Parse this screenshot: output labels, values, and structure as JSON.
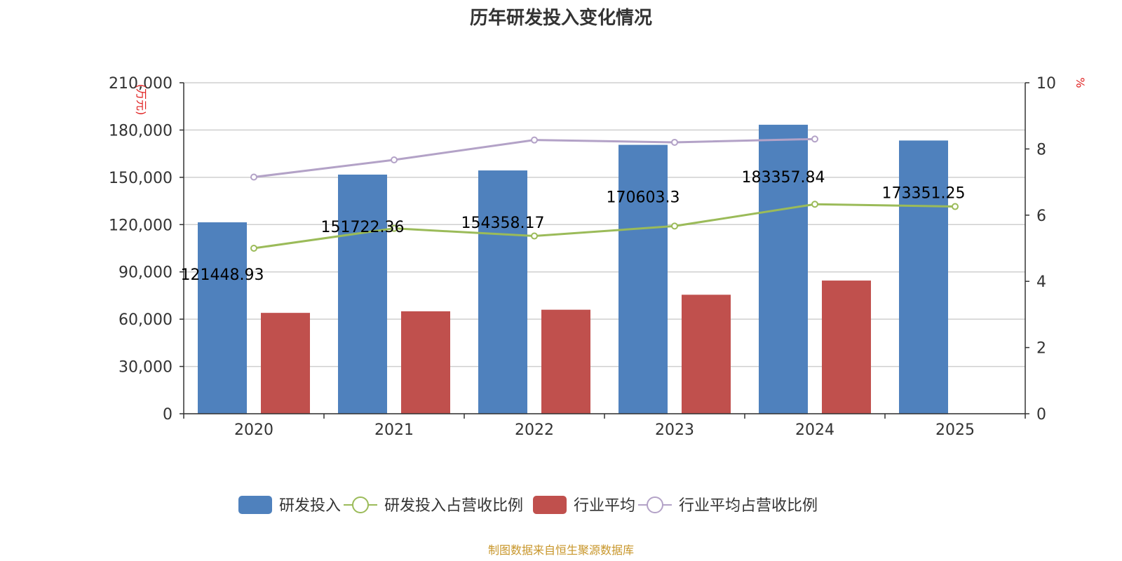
{
  "chart_data": {
    "type": "bar",
    "title": "历年研发投入变化情况",
    "categories": [
      "2020",
      "2021",
      "2022",
      "2023",
      "2024",
      "2025"
    ],
    "y_left": {
      "unit": "(万元)",
      "range": [
        0,
        210000
      ],
      "ticks": [
        0,
        30000,
        60000,
        90000,
        120000,
        150000,
        180000,
        210000
      ],
      "tick_labels": [
        "0",
        "30,000",
        "60,000",
        "90,000",
        "120,000",
        "150,000",
        "180,000",
        "210,000"
      ]
    },
    "y_right": {
      "unit": "%",
      "range": [
        0,
        10
      ],
      "ticks": [
        0,
        2,
        4,
        6,
        8,
        10
      ],
      "tick_labels": [
        "0",
        "2",
        "4",
        "6",
        "8",
        "10"
      ]
    },
    "grid": true,
    "legend_position": "bottom",
    "series": [
      {
        "name": "研发投入",
        "kind": "bar",
        "axis": "left",
        "color": "#4f81bd",
        "values": [
          121448.93,
          151722.36,
          154358.17,
          170603.3,
          183357.84,
          173351.25
        ],
        "labels": [
          "121448.93",
          "151722.36",
          "154358.17",
          "170603.3",
          "183357.84",
          "173351.25"
        ]
      },
      {
        "name": "研发投入占营收比例",
        "kind": "line",
        "axis": "right",
        "color": "#9bbb59",
        "values": [
          5.0,
          5.6,
          5.37,
          5.67,
          6.33,
          6.26
        ]
      },
      {
        "name": "行业平均",
        "kind": "bar",
        "axis": "left",
        "color": "#c0504d",
        "values": [
          64000,
          65000,
          66000,
          75500,
          84500,
          null
        ]
      },
      {
        "name": "行业平均占营收比例",
        "kind": "line",
        "axis": "right",
        "color": "#b3a2c7",
        "values": [
          7.15,
          7.67,
          8.27,
          8.2,
          8.3,
          null
        ]
      }
    ]
  },
  "footer": {
    "source": "制图数据来自恒生聚源数据库"
  }
}
